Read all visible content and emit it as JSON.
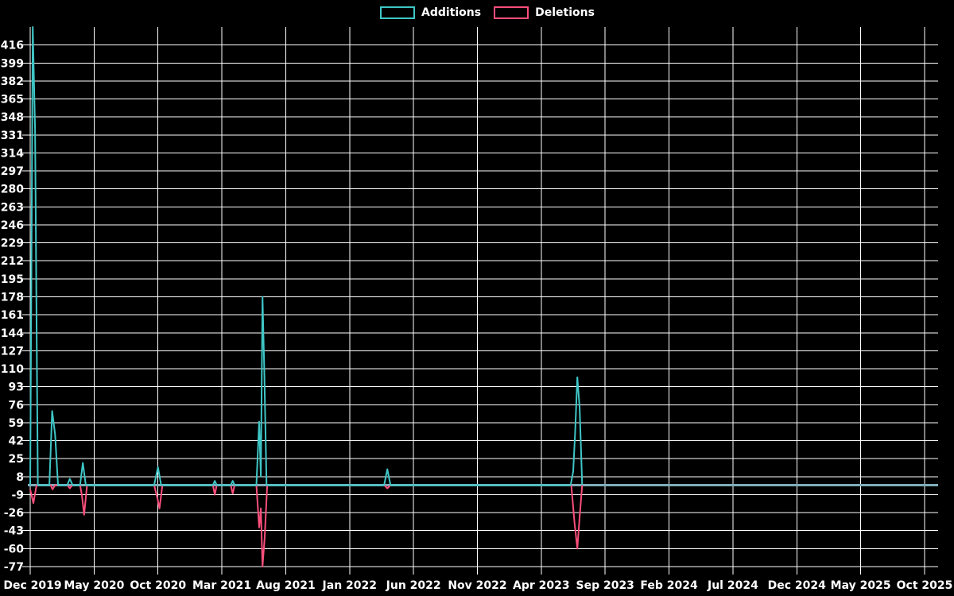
{
  "chart_data": {
    "type": "line",
    "title": "",
    "legend_position": "top-center",
    "background_color": "#000000",
    "grid": {
      "on": true,
      "color": "#ffffff"
    },
    "baseline_color": "#7fadba",
    "x_axis": {
      "unit": "months since Dec 2019",
      "tick_labels": [
        "Dec 2019",
        "May 2020",
        "Oct 2020",
        "Mar 2021",
        "Aug 2021",
        "Jan 2022",
        "Jun 2022",
        "Nov 2022",
        "Apr 2023",
        "Sep 2023",
        "Feb 2024",
        "Jul 2024",
        "Dec 2024",
        "May 2025",
        "Oct 2025"
      ],
      "tick_months": [
        0,
        5,
        10,
        15,
        20,
        25,
        30,
        35,
        40,
        45,
        50,
        55,
        60,
        65,
        70
      ],
      "range_months": [
        0,
        70
      ]
    },
    "y_axis": {
      "tick_values": [
        416,
        399,
        382,
        365,
        348,
        331,
        314,
        297,
        280,
        263,
        246,
        229,
        212,
        195,
        178,
        161,
        144,
        127,
        110,
        93,
        76,
        59,
        42,
        25,
        8,
        -9,
        -26,
        -43,
        -60,
        -77
      ],
      "range": [
        -77,
        433
      ]
    },
    "series": [
      {
        "name": "Additions",
        "color": "#3fc6c6",
        "note": "first spike exceeds axis range and is clipped at top (>=433)",
        "points": [
          [
            0,
            0
          ],
          [
            0.2,
            433
          ],
          [
            0.38,
            337
          ],
          [
            0.6,
            0
          ],
          [
            1.5,
            0
          ],
          [
            1.72,
            70
          ],
          [
            1.95,
            48
          ],
          [
            2.18,
            0
          ],
          [
            2.9,
            0
          ],
          [
            3.1,
            6
          ],
          [
            3.32,
            0
          ],
          [
            3.9,
            0
          ],
          [
            4.12,
            21
          ],
          [
            4.35,
            0
          ],
          [
            9.7,
            0
          ],
          [
            10.0,
            17
          ],
          [
            10.25,
            0
          ],
          [
            14.3,
            0
          ],
          [
            14.45,
            4
          ],
          [
            14.6,
            0
          ],
          [
            15.7,
            0
          ],
          [
            15.85,
            4
          ],
          [
            16.0,
            0
          ],
          [
            17.7,
            0
          ],
          [
            17.92,
            60
          ],
          [
            18.05,
            8
          ],
          [
            18.18,
            178
          ],
          [
            18.32,
            110
          ],
          [
            18.5,
            0
          ],
          [
            27.7,
            0
          ],
          [
            27.95,
            15
          ],
          [
            28.2,
            0
          ],
          [
            42.3,
            0
          ],
          [
            42.5,
            13
          ],
          [
            42.65,
            49
          ],
          [
            42.82,
            102
          ],
          [
            43.0,
            73
          ],
          [
            43.2,
            0
          ],
          [
            70,
            0
          ]
        ]
      },
      {
        "name": "Deletions",
        "color": "#fa4f7b",
        "points": [
          [
            0,
            -4
          ],
          [
            0.25,
            -17
          ],
          [
            0.5,
            0
          ],
          [
            1.6,
            0
          ],
          [
            1.75,
            -4
          ],
          [
            1.95,
            0
          ],
          [
            2.9,
            0
          ],
          [
            3.1,
            -3
          ],
          [
            3.3,
            0
          ],
          [
            3.9,
            0
          ],
          [
            4.05,
            -10
          ],
          [
            4.22,
            -28
          ],
          [
            4.45,
            0
          ],
          [
            9.7,
            0
          ],
          [
            9.95,
            -12
          ],
          [
            10.12,
            -22
          ],
          [
            10.35,
            0
          ],
          [
            14.3,
            0
          ],
          [
            14.45,
            -9
          ],
          [
            14.6,
            0
          ],
          [
            15.7,
            0
          ],
          [
            15.85,
            -8
          ],
          [
            16.0,
            0
          ],
          [
            17.7,
            0
          ],
          [
            17.92,
            -40
          ],
          [
            18.05,
            -22
          ],
          [
            18.18,
            -77
          ],
          [
            18.35,
            -50
          ],
          [
            18.55,
            0
          ],
          [
            27.7,
            0
          ],
          [
            27.95,
            -3
          ],
          [
            28.2,
            0
          ],
          [
            42.35,
            0
          ],
          [
            42.6,
            -35
          ],
          [
            42.82,
            -60
          ],
          [
            43.0,
            -30
          ],
          [
            43.2,
            0
          ],
          [
            70,
            0
          ]
        ]
      }
    ]
  }
}
